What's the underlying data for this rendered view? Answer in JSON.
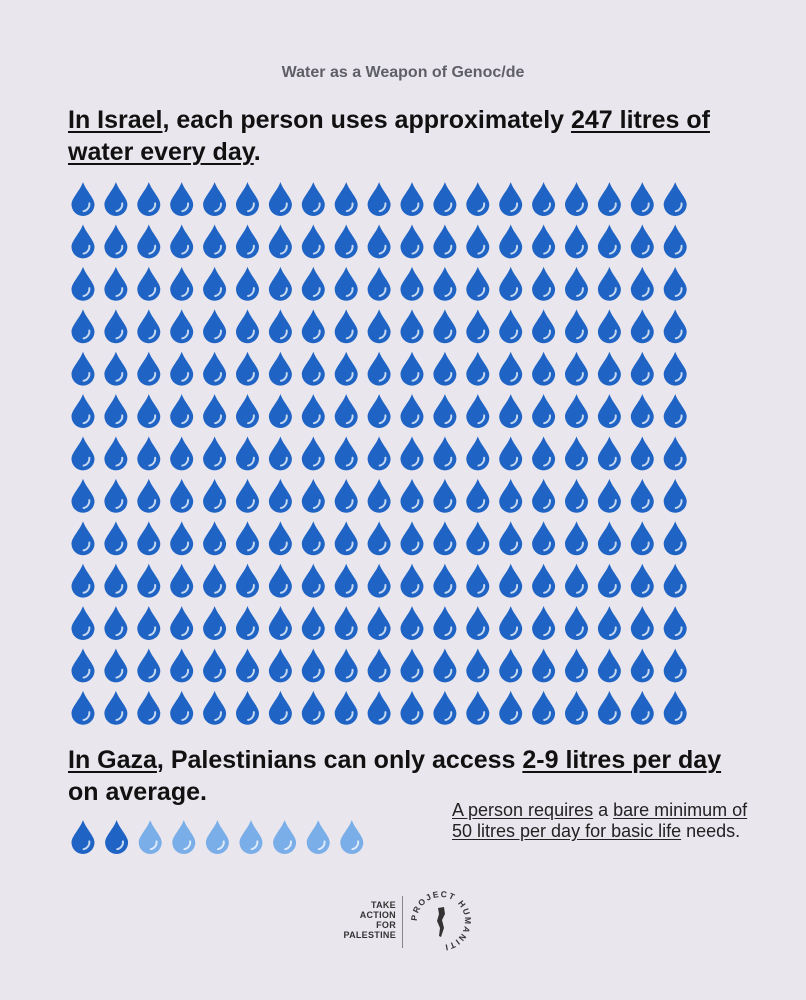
{
  "eyebrow": "Water as a Weapon of Genoc/de",
  "israel": {
    "lead": "In Israel",
    "mid": ", each person uses approximately ",
    "amount": "247 litres of water every day",
    "end": ".",
    "drop_count": 247,
    "drop_color": "#1f64c4"
  },
  "gaza": {
    "lead": "In Gaza",
    "mid": ", Palestinians can only access ",
    "amount": "2-9 litres per day ",
    "end": "on average.",
    "drops_min": 2,
    "drops_max": 9,
    "drop_color_dark": "#1f64c4",
    "drop_color_light": "#7aaee8"
  },
  "note": {
    "part1": "A person requires",
    "part2": " a ",
    "part3": "bare minimum of 50 litres per day for basic life",
    "part4": " needs."
  },
  "footer": {
    "line1": "TAKE",
    "line2": "ACTION",
    "line3": "FOR",
    "line4": "PALESTINE",
    "logo_text": "PROJECT HUMANITI"
  }
}
